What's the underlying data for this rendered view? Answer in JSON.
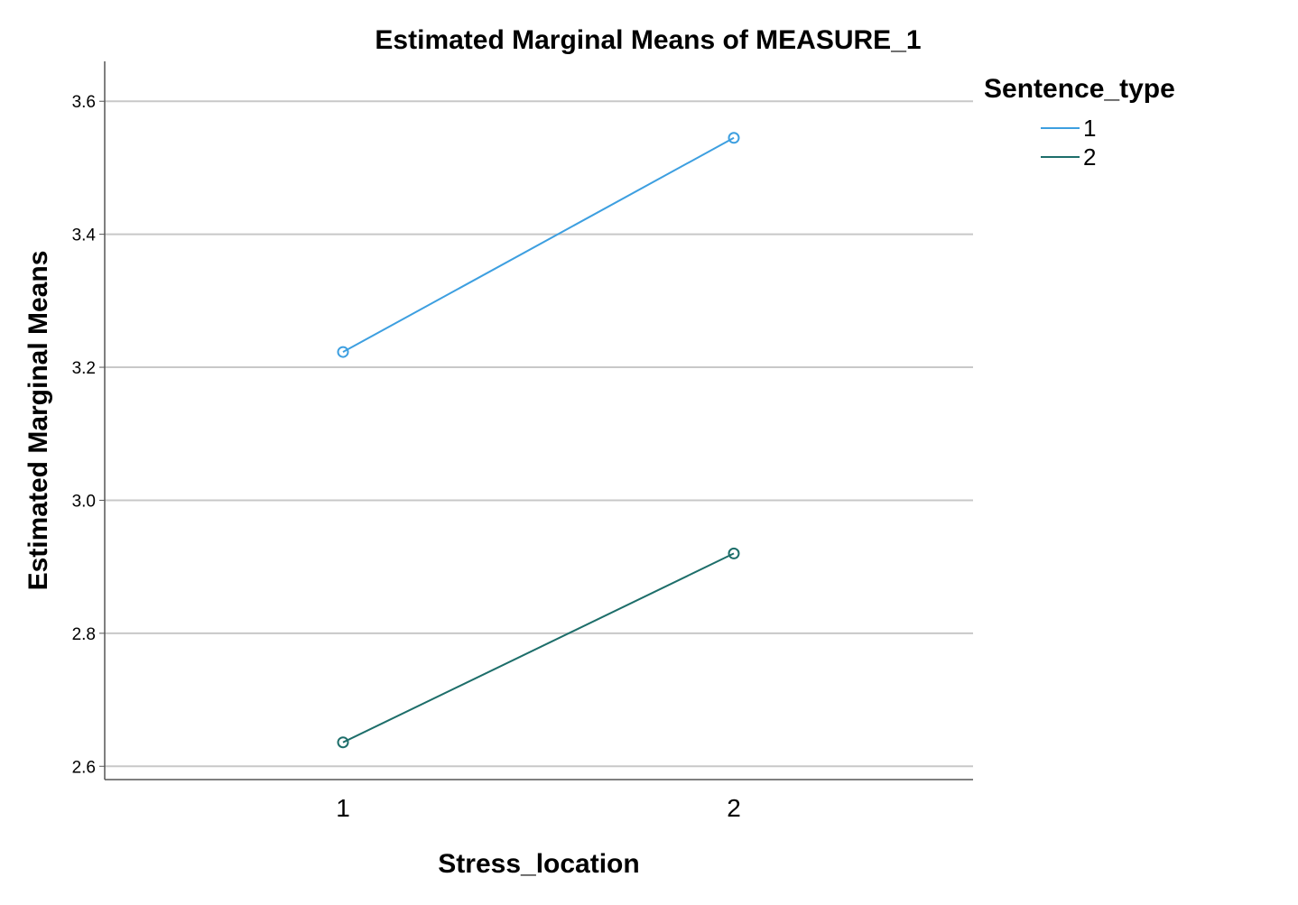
{
  "chart_data": {
    "type": "line",
    "title": "Estimated Marginal Means of MEASURE_1",
    "xlabel": "Stress_location",
    "ylabel": "Estimated Marginal Means",
    "categories": [
      "1",
      "2"
    ],
    "ylim": [
      2.58,
      3.66
    ],
    "yticks": [
      2.6,
      2.8,
      3.0,
      3.2,
      3.4,
      3.6
    ],
    "ytick_labels": [
      "2.6",
      "2.8",
      "3.0",
      "3.2",
      "3.4",
      "3.6"
    ],
    "grid": "horizontal",
    "legend": {
      "title": "Sentence_type",
      "placement": "top-right, outside plot"
    },
    "series": [
      {
        "name": "1",
        "values": [
          3.223,
          3.545
        ],
        "color": "#3d9fe0",
        "marker": "open-circle"
      },
      {
        "name": "2",
        "values": [
          2.636,
          2.92
        ],
        "color": "#1d6e6a",
        "marker": "open-circle"
      }
    ]
  }
}
